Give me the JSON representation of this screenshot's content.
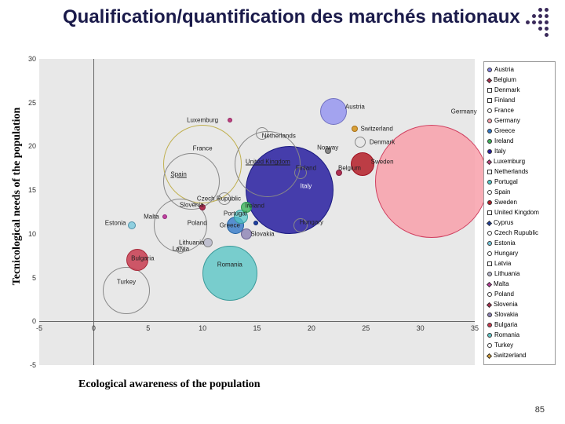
{
  "title": "Qualification/quantification des marchés nationaux",
  "ylabel": "Tecnicological needs of the population",
  "xlabel": "Ecological awareness of the population",
  "page_num": "85",
  "plot": {
    "bg": "#e8e8e8",
    "xlim": [
      -5,
      35
    ],
    "ylim": [
      -5,
      30
    ],
    "xtick_step": 5,
    "ytick_step": 5,
    "bubbles": [
      {
        "label": "Germany",
        "x": 31,
        "y": 16,
        "r": 72,
        "fill": "rgba(248,160,170,0.85)",
        "stroke": "#d04060",
        "lx": 34,
        "ly": 24
      },
      {
        "label": "Italy",
        "x": 18,
        "y": 15,
        "r": 56,
        "fill": "rgba(40,30,160,0.85)",
        "stroke": "#1a1a80",
        "lx": 19.5,
        "ly": 15.5,
        "textcolor": "#fff"
      },
      {
        "label": "France",
        "x": 10,
        "y": 18,
        "r": 50,
        "fill": "rgba(255,255,255,0)",
        "stroke": "#c0b050",
        "lx": 10,
        "ly": 19.8
      },
      {
        "label": "United Kingdom",
        "x": 16,
        "y": 18,
        "r": 42,
        "fill": "rgba(255,255,255,0)",
        "stroke": "#888",
        "lx": 16,
        "ly": 18.2,
        "underline": true
      },
      {
        "label": "Spain",
        "x": 9,
        "y": 16,
        "r": 36,
        "fill": "rgba(255,255,255,0)",
        "stroke": "#888",
        "lx": 7.8,
        "ly": 16.8,
        "underline": true
      },
      {
        "label": "Poland",
        "x": 8,
        "y": 11,
        "r": 34,
        "fill": "rgba(255,255,255,0)",
        "stroke": "#888",
        "lx": 9.5,
        "ly": 11.2
      },
      {
        "label": "Netherlands",
        "x": 15.5,
        "y": 21.5,
        "r": 8,
        "fill": "rgba(255,255,255,0)",
        "stroke": "#888",
        "lx": 17,
        "ly": 21.2
      },
      {
        "label": "Romania",
        "x": 12.5,
        "y": 5.5,
        "r": 35,
        "fill": "rgba(100,200,200,0.85)",
        "stroke": "#3a9a9a",
        "lx": 12.5,
        "ly": 6.5
      },
      {
        "label": "Austria",
        "x": 22,
        "y": 24,
        "r": 17,
        "fill": "rgba(150,150,240,0.85)",
        "stroke": "#7070c0",
        "lx": 24,
        "ly": 24.5
      },
      {
        "label": "Switzerland",
        "x": 24,
        "y": 22,
        "r": 4,
        "fill": "#d8a038",
        "stroke": "#a87018",
        "lx": 26,
        "ly": 22
      },
      {
        "label": "Denmark",
        "x": 24.5,
        "y": 20.5,
        "r": 7,
        "fill": "rgba(255,255,255,0)",
        "stroke": "#888",
        "lx": 26.5,
        "ly": 20.5
      },
      {
        "label": "Norway",
        "x": 21.5,
        "y": 19.5,
        "r": 4,
        "fill": "#888",
        "stroke": "#555",
        "lx": 21.5,
        "ly": 19.9
      },
      {
        "label": "Sweden",
        "x": 24.7,
        "y": 18,
        "r": 15,
        "fill": "rgba(180,30,40,0.85)",
        "stroke": "#a01020",
        "lx": 26.5,
        "ly": 18.2
      },
      {
        "label": "Belgium",
        "x": 22.5,
        "y": 17,
        "r": 4,
        "fill": "#b03050",
        "stroke": "#802040",
        "lx": 23.5,
        "ly": 17.5
      },
      {
        "label": "Finland",
        "x": 19,
        "y": 17,
        "r": 8,
        "fill": "rgba(255,255,255,0)",
        "stroke": "#888",
        "lx": 19.5,
        "ly": 17.5
      },
      {
        "label": "Luxemburg",
        "x": 12.5,
        "y": 23,
        "r": 3,
        "fill": "#c04080",
        "stroke": "#902860",
        "lx": 10,
        "ly": 23
      },
      {
        "label": "Czech Rupublic",
        "x": 12,
        "y": 14,
        "r": 8,
        "fill": "rgba(255,255,255,0)",
        "stroke": "#888",
        "lx": 11.5,
        "ly": 14
      },
      {
        "label": "Slovenia",
        "x": 10,
        "y": 13,
        "r": 4,
        "fill": "#b03050",
        "stroke": "#802040",
        "lx": 9,
        "ly": 13.3
      },
      {
        "label": "Ireland",
        "x": 14,
        "y": 13,
        "r": 7,
        "fill": "rgba(60,180,90,0.8)",
        "stroke": "#2a9850",
        "lx": 14.8,
        "ly": 13.2
      },
      {
        "label": "Portugal",
        "x": 13.5,
        "y": 12,
        "r": 9,
        "fill": "rgba(80,200,200,0.7)",
        "stroke": "#3a9a9a",
        "lx": 13,
        "ly": 12.3
      },
      {
        "label": "Greece",
        "x": 13,
        "y": 11,
        "r": 11,
        "fill": "rgba(50,120,200,0.8)",
        "stroke": "#2060a0",
        "lx": 12.5,
        "ly": 11
      },
      {
        "label": "Cyprus",
        "x": 14.9,
        "y": 11.2,
        "r": 3,
        "fill": "#2040a0",
        "stroke": "#102870",
        "lx": null,
        "ly": null
      },
      {
        "label": "Slovakia",
        "x": 14,
        "y": 10,
        "r": 7,
        "fill": "rgba(140,130,180,0.8)",
        "stroke": "#6a6090",
        "lx": 15.5,
        "ly": 10
      },
      {
        "label": "Hungary",
        "x": 19,
        "y": 11,
        "r": 9,
        "fill": "rgba(255,255,255,0)",
        "stroke": "#888",
        "lx": 20,
        "ly": 11.3
      },
      {
        "label": "Malta",
        "x": 6.5,
        "y": 12,
        "r": 3,
        "fill": "#c040a0",
        "stroke": "#902878",
        "lx": 5.3,
        "ly": 12
      },
      {
        "label": "Estonia",
        "x": 3.5,
        "y": 11,
        "r": 5,
        "fill": "rgba(120,200,220,0.8)",
        "stroke": "#5090a8",
        "lx": 2,
        "ly": 11.2
      },
      {
        "label": "Lithuania",
        "x": 10.5,
        "y": 9,
        "r": 6,
        "fill": "rgba(180,180,200,0.8)",
        "stroke": "#888",
        "lx": 9,
        "ly": 9
      },
      {
        "label": "Latvia",
        "x": 8,
        "y": 8.2,
        "r": 5,
        "fill": "rgba(255,255,255,0)",
        "stroke": "#888",
        "lx": 8,
        "ly": 8.3
      },
      {
        "label": "Bulgaria",
        "x": 4,
        "y": 7,
        "r": 14,
        "fill": "rgba(200,60,80,0.85)",
        "stroke": "#a82838",
        "lx": 4.5,
        "ly": 7.2
      },
      {
        "label": "Turkey",
        "x": 3,
        "y": 3.5,
        "r": 30,
        "fill": "rgba(255,255,255,0)",
        "stroke": "#888",
        "lx": 3,
        "ly": 4.5
      }
    ]
  },
  "legend": [
    {
      "label": "Austria",
      "color": "#8080e0",
      "shape": "circle"
    },
    {
      "label": "Belgium",
      "color": "#b03050",
      "shape": "diamond"
    },
    {
      "label": "Denmark",
      "color": "#fff",
      "shape": "square"
    },
    {
      "label": "Finland",
      "color": "#fff",
      "shape": "square"
    },
    {
      "label": "France",
      "color": "#fff",
      "shape": "circle"
    },
    {
      "label": "Germany",
      "color": "#f8a0aa",
      "shape": "circle"
    },
    {
      "label": "Greece",
      "color": "#3278c8",
      "shape": "circle"
    },
    {
      "label": "Ireland",
      "color": "#3cb45a",
      "shape": "circle"
    },
    {
      "label": "Italy",
      "color": "#281ea0",
      "shape": "circle"
    },
    {
      "label": "Luxemburg",
      "color": "#c04080",
      "shape": "diamond"
    },
    {
      "label": "Netherlands",
      "color": "#fff",
      "shape": "square"
    },
    {
      "label": "Portugal",
      "color": "#50c8c8",
      "shape": "circle"
    },
    {
      "label": "Spain",
      "color": "#fff",
      "shape": "circle"
    },
    {
      "label": "Sweden",
      "color": "#b41e28",
      "shape": "circle"
    },
    {
      "label": "United Kingdom",
      "color": "#fff",
      "shape": "square"
    },
    {
      "label": "Cyprus",
      "color": "#2040a0",
      "shape": "diamond"
    },
    {
      "label": "Czech Rupublic",
      "color": "#fff",
      "shape": "circle"
    },
    {
      "label": "Estonia",
      "color": "#78c8dc",
      "shape": "circle"
    },
    {
      "label": "Hungary",
      "color": "#fff",
      "shape": "circle"
    },
    {
      "label": "Latvia",
      "color": "#fff",
      "shape": "square"
    },
    {
      "label": "Lithuania",
      "color": "#b4b4c8",
      "shape": "circle"
    },
    {
      "label": "Malta",
      "color": "#c040a0",
      "shape": "diamond"
    },
    {
      "label": "Poland",
      "color": "#fff",
      "shape": "circle"
    },
    {
      "label": "Slovenia",
      "color": "#b03050",
      "shape": "diamond"
    },
    {
      "label": "Slovakia",
      "color": "#8c82b4",
      "shape": "circle"
    },
    {
      "label": "Bulgaria",
      "color": "#c83c50",
      "shape": "circle"
    },
    {
      "label": "Romania",
      "color": "#64c8c8",
      "shape": "circle"
    },
    {
      "label": "Turkey",
      "color": "#fff",
      "shape": "circle"
    },
    {
      "label": "Switzerland",
      "color": "#d8a038",
      "shape": "diamond"
    }
  ]
}
